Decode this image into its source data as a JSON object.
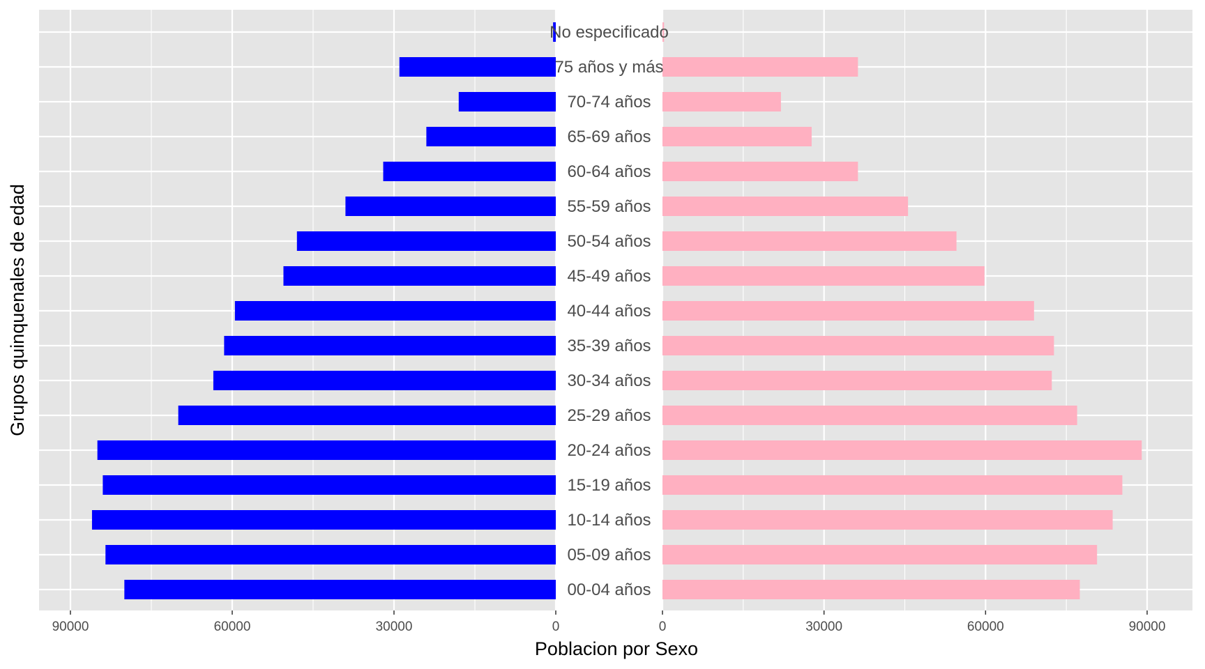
{
  "chart_data": {
    "type": "bar",
    "orientation": "horizontal",
    "layout": "population-pyramid",
    "xlabel": "Poblacion por Sexo",
    "ylabel": "Grupos quinquenales de edad",
    "categories": [
      "00-04 años",
      "05-09 años",
      "10-14 años",
      "15-19 años",
      "20-24 años",
      "25-29 años",
      "30-34 años",
      "35-39 años",
      "40-44 años",
      "45-49 años",
      "50-54 años",
      "55-59 años",
      "60-64 años",
      "65-69 años",
      "70-74 años",
      "75 años y más",
      "No especificado"
    ],
    "series": [
      {
        "color": "#0000ff",
        "side": "left",
        "values": [
          80000,
          83500,
          86000,
          84000,
          85000,
          70000,
          63500,
          61500,
          59500,
          50500,
          48000,
          39000,
          32000,
          24000,
          18000,
          29000,
          500
        ]
      },
      {
        "color": "#ffb0c1",
        "side": "right",
        "values": [
          77500,
          80700,
          83600,
          85400,
          89000,
          77000,
          72300,
          72700,
          69000,
          59800,
          54600,
          45600,
          36300,
          27700,
          22000,
          36300,
          300
        ]
      }
    ],
    "xlim_left": [
      90000,
      0
    ],
    "xlim_right": [
      0,
      90000
    ],
    "xticks_left": [
      "90000",
      "60000",
      "30000",
      "0"
    ],
    "xticks_right": [
      "0",
      "30000",
      "60000",
      "90000"
    ],
    "xtick_values_left": [
      90000,
      60000,
      30000,
      0
    ],
    "xtick_values_right": [
      0,
      30000,
      60000,
      90000
    ],
    "grid": true,
    "background": "#e5e5e5",
    "gridline_color": "#ffffff",
    "legend": "none"
  }
}
